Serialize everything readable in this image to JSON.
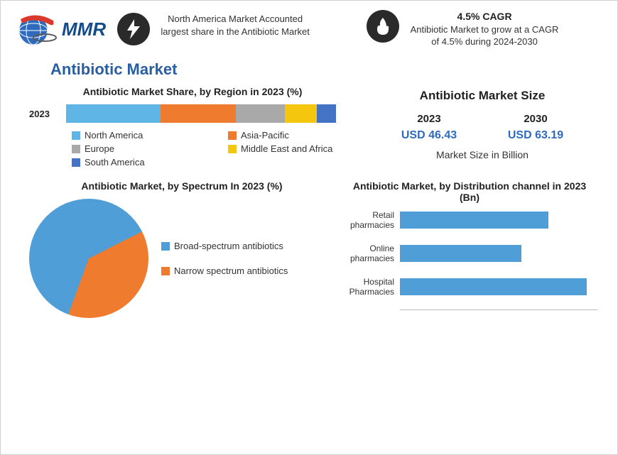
{
  "header": {
    "logo_text": "MMR",
    "item1": "North America Market Accounted largest share in the Antibiotic Market",
    "item2_bold": "4.5% CAGR",
    "item2_text": "Antibiotic Market to grow at a CAGR of 4.5% during 2024-2030"
  },
  "market_title": "Antibiotic Market",
  "region_chart": {
    "title": "Antibiotic Market Share, by Region in 2023 (%)",
    "year_label": "2023",
    "type": "stacked-bar",
    "segments": [
      {
        "name": "North America",
        "value": 35,
        "color": "#5fb6e6"
      },
      {
        "name": "Asia-Pacific",
        "value": 28,
        "color": "#ef7c2e"
      },
      {
        "name": "Europe",
        "value": 18,
        "color": "#a9a9a9"
      },
      {
        "name": "Middle East and Africa",
        "value": 12,
        "color": "#f5c60e"
      },
      {
        "name": "South America",
        "value": 7,
        "color": "#4472c4"
      }
    ]
  },
  "market_size": {
    "title": "Antibiotic Market Size",
    "years": [
      "2023",
      "2030"
    ],
    "values": [
      "USD 46.43",
      "USD 63.19"
    ],
    "caption": "Market Size in Billion",
    "value_color": "#2e6bbf"
  },
  "spectrum_chart": {
    "title": "Antibiotic Market, by Spectrum In 2023 (%)",
    "type": "pie",
    "slices": [
      {
        "name": "Broad-spectrum antibiotics",
        "value": 62,
        "color": "#4f9ed8"
      },
      {
        "name": "Narrow spectrum antibiotics",
        "value": 38,
        "color": "#ef7c2e"
      }
    ],
    "background_color": "#ffffff"
  },
  "distribution_chart": {
    "title": "Antibiotic Market, by Distribution channel in 2023 (Bn)",
    "type": "hbar",
    "bar_color": "#4f9ed8",
    "max": 22,
    "categories": [
      {
        "label": "Retail pharmacies",
        "value": 16.5
      },
      {
        "label": "Online pharmacies",
        "value": 13.5
      },
      {
        "label": "Hospital Pharmacies",
        "value": 20.8
      }
    ]
  },
  "logo_colors": {
    "globe": "#2e6bbf",
    "swoosh": "#d93a2b"
  }
}
